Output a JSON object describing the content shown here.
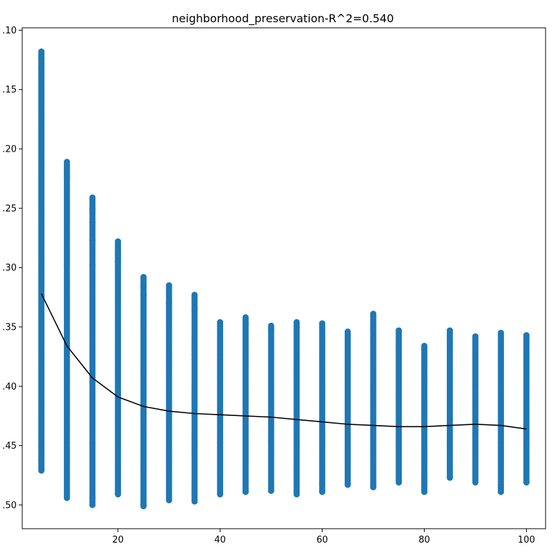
{
  "chart_data": {
    "type": "scatter",
    "title": "neighborhood_preservation-R^2=0.540",
    "xlabel": "",
    "ylabel": "",
    "xlim": [
      1.25,
      103.75
    ],
    "ylim": [
      0.52,
      0.098
    ],
    "y_inverted": true,
    "x_ticks": [
      20,
      40,
      60,
      80,
      100
    ],
    "x_tick_labels": [
      "20",
      "40",
      "60",
      "80",
      "100"
    ],
    "y_ticks": [
      0.1,
      0.15,
      0.2,
      0.25,
      0.3,
      0.35,
      0.4,
      0.45,
      0.5
    ],
    "y_tick_labels": [
      ".10",
      ".15",
      ".20",
      ".25",
      ".30",
      ".35",
      ".40",
      ".45",
      ".50"
    ],
    "grid": false,
    "colors": {
      "points": "#1f77b4",
      "trend": "#000000"
    },
    "series": [
      {
        "kind": "points",
        "x": [
          5,
          10,
          15,
          20,
          25,
          30,
          35,
          40,
          45,
          50,
          55,
          60,
          65,
          70,
          75,
          80,
          85,
          90,
          95,
          100
        ],
        "y_min": [
          0.118,
          0.211,
          0.241,
          0.278,
          0.308,
          0.315,
          0.323,
          0.346,
          0.342,
          0.349,
          0.346,
          0.347,
          0.354,
          0.339,
          0.353,
          0.366,
          0.353,
          0.358,
          0.355,
          0.357
        ],
        "y_max": [
          0.471,
          0.494,
          0.5,
          0.491,
          0.501,
          0.496,
          0.497,
          0.491,
          0.489,
          0.488,
          0.491,
          0.489,
          0.483,
          0.485,
          0.481,
          0.489,
          0.477,
          0.481,
          0.489,
          0.481
        ],
        "outliers": [
          [
            5,
            0.124
          ],
          [
            5,
            0.131
          ],
          [
            5,
            0.445
          ],
          [
            5,
            0.451
          ],
          [
            5,
            0.462
          ],
          [
            10,
            0.214
          ],
          [
            10,
            0.218
          ],
          [
            10,
            0.222
          ],
          [
            10,
            0.225
          ],
          [
            15,
            0.251
          ],
          [
            15,
            0.262
          ],
          [
            15,
            0.277
          ],
          [
            15,
            0.494
          ],
          [
            20,
            0.289
          ],
          [
            20,
            0.295
          ],
          [
            25,
            0.315
          ],
          [
            25,
            0.323
          ],
          [
            30,
            0.33
          ],
          [
            35,
            0.335
          ],
          [
            45,
            0.347
          ],
          [
            50,
            0.352
          ],
          [
            55,
            0.35
          ],
          [
            60,
            0.482
          ],
          [
            65,
            0.482
          ],
          [
            70,
            0.351
          ],
          [
            80,
            0.479
          ],
          [
            85,
            0.363
          ],
          [
            95,
            0.483
          ]
        ]
      },
      {
        "kind": "line",
        "x": [
          5,
          10,
          15,
          20,
          25,
          30,
          35,
          40,
          45,
          50,
          55,
          60,
          65,
          70,
          75,
          80,
          85,
          90,
          95,
          100
        ],
        "y": [
          0.322,
          0.366,
          0.393,
          0.409,
          0.417,
          0.421,
          0.423,
          0.424,
          0.425,
          0.426,
          0.428,
          0.43,
          0.432,
          0.433,
          0.434,
          0.434,
          0.433,
          0.432,
          0.433,
          0.436
        ]
      }
    ]
  }
}
